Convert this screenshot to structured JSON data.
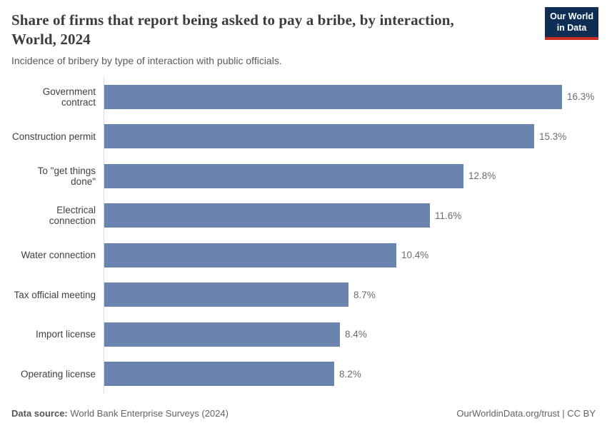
{
  "header": {
    "title_lines": [
      "Share of firms that report being asked to pay a bribe, by interaction,",
      "World, 2024"
    ],
    "subtitle": "Incidence of bribery by type of interaction with public officials.",
    "logo": {
      "line1": "Our World",
      "line2": "in Data",
      "bg_color": "#0e2e55",
      "stripe_color": "#cb2d20"
    }
  },
  "chart_data": {
    "type": "bar",
    "orientation": "horizontal",
    "title": "Share of firms that report being asked to pay a bribe, by interaction, World, 2024",
    "subtitle": "Incidence of bribery by type of interaction with public officials.",
    "categories": [
      "Government contract",
      "Construction permit",
      "To \"get things done\"",
      "Electrical connection",
      "Water connection",
      "Tax official meeting",
      "Import license",
      "Operating license"
    ],
    "values": [
      16.3,
      15.3,
      12.8,
      11.6,
      10.4,
      8.7,
      8.4,
      8.2
    ],
    "value_labels": [
      "16.3%",
      "15.3%",
      "12.8%",
      "11.6%",
      "10.4%",
      "8.7%",
      "8.4%",
      "8.2%"
    ],
    "unit": "%",
    "xlabel": "",
    "ylabel": "",
    "xlim": [
      0,
      17.5
    ],
    "grid": false,
    "legend": false,
    "bar_color": "#6b84af",
    "axis_color": "#d9d9d9"
  },
  "footer": {
    "data_source_label": "Data source:",
    "data_source_value": " World Bank Enterprise Surveys (2024)",
    "credit": "OurWorldinData.org/trust | CC BY"
  }
}
